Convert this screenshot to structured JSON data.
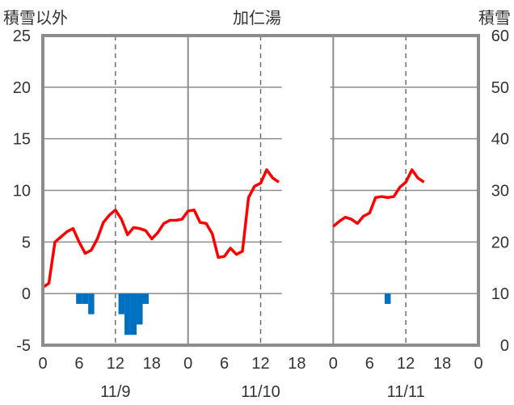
{
  "header": {
    "left_label": "積雪以外",
    "title": "加仁湯",
    "right_label": "積雪"
  },
  "chart_data": {
    "type": "line",
    "title": "加仁湯",
    "y_left": {
      "label": "積雪以外",
      "ticks": [
        25,
        20,
        15,
        10,
        5,
        0,
        -5
      ],
      "range": [
        -5,
        25
      ]
    },
    "y_right": {
      "label": "積雪",
      "ticks": [
        60,
        50,
        40,
        30,
        20,
        10,
        0
      ],
      "range": [
        0,
        60
      ]
    },
    "x": {
      "range_hours": [
        0,
        72
      ],
      "tick_labels": [
        "0",
        "6",
        "12",
        "18",
        "0",
        "6",
        "12",
        "18",
        "0",
        "6",
        "12",
        "18",
        "0"
      ],
      "day_labels": [
        "11/9",
        "11/10",
        "11/11"
      ]
    },
    "series": [
      {
        "kind": "temperature_line",
        "color": "#ff0000",
        "segments": [
          [
            [
              0,
              0.6
            ],
            [
              1,
              1.0
            ],
            [
              2,
              5.0
            ],
            [
              3,
              5.5
            ],
            [
              4,
              6.0
            ],
            [
              5,
              6.3
            ],
            [
              6,
              5.0
            ],
            [
              7,
              3.9
            ],
            [
              8,
              4.2
            ],
            [
              9,
              5.3
            ],
            [
              10,
              6.9
            ],
            [
              11,
              7.6
            ],
            [
              12,
              8.1
            ],
            [
              13,
              7.2
            ],
            [
              14,
              5.7
            ],
            [
              15,
              6.4
            ],
            [
              16,
              6.3
            ],
            [
              17,
              6.1
            ],
            [
              18,
              5.3
            ],
            [
              19,
              5.9
            ],
            [
              20,
              6.8
            ],
            [
              21,
              7.1
            ],
            [
              22,
              7.1
            ],
            [
              23,
              7.2
            ],
            [
              24,
              8.0
            ],
            [
              25,
              8.1
            ],
            [
              26,
              6.9
            ],
            [
              27,
              6.8
            ],
            [
              28,
              5.8
            ],
            [
              29,
              3.5
            ],
            [
              30,
              3.6
            ],
            [
              31,
              4.4
            ],
            [
              32,
              3.8
            ],
            [
              33,
              4.1
            ],
            [
              34,
              9.3
            ],
            [
              35,
              10.4
            ],
            [
              36,
              10.7
            ],
            [
              37,
              12.0
            ],
            [
              38,
              11.2
            ],
            [
              39,
              10.8
            ]
          ],
          [
            [
              48,
              6.5
            ],
            [
              49,
              7.0
            ],
            [
              50,
              7.4
            ],
            [
              51,
              7.2
            ],
            [
              52,
              6.8
            ],
            [
              53,
              7.5
            ],
            [
              54,
              7.8
            ],
            [
              55,
              9.3
            ],
            [
              56,
              9.4
            ],
            [
              57,
              9.3
            ],
            [
              58,
              9.4
            ],
            [
              59,
              10.3
            ],
            [
              60,
              10.8
            ],
            [
              61,
              12.0
            ],
            [
              62,
              11.2
            ],
            [
              63,
              10.8
            ]
          ]
        ]
      },
      {
        "kind": "precipitation_bars",
        "color": "#0070c0",
        "bars": [
          {
            "hour": 6,
            "value": -1.0
          },
          {
            "hour": 7,
            "value": -1.0
          },
          {
            "hour": 8,
            "value": -2.0
          },
          {
            "hour": 13,
            "value": -2.0
          },
          {
            "hour": 14,
            "value": -4.0
          },
          {
            "hour": 15,
            "value": -4.0
          },
          {
            "hour": 16,
            "value": -3.0
          },
          {
            "hour": 17,
            "value": -1.0
          },
          {
            "hour": 57,
            "value": -1.0
          }
        ]
      },
      {
        "kind": "snow_depth_line",
        "color": "#7030a0",
        "axis": "right",
        "segments": [
          [
            [
              0,
              0
            ],
            [
              39,
              0
            ]
          ],
          [
            [
              48,
              0
            ],
            [
              63,
              0
            ]
          ]
        ]
      }
    ],
    "missing_hours": [
      [
        39.5,
        47.5
      ]
    ],
    "grid": true
  }
}
